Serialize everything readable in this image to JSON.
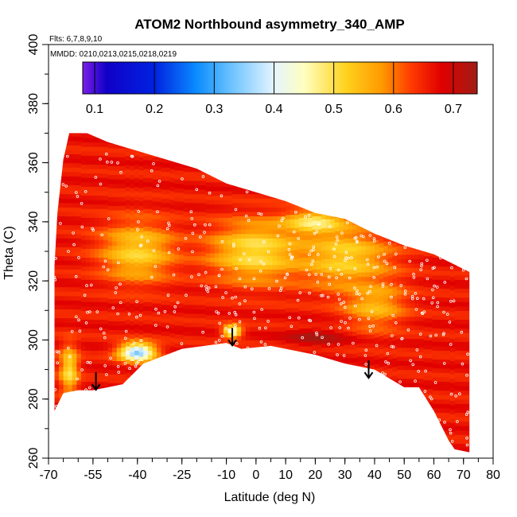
{
  "chart_data": {
    "type": "heatmap",
    "title": "ATOM2 Northbound asymmetry_340_AMP",
    "flights_note": "Flts: 6,7,8,9,10",
    "dates_note": "MMDD: 0210,0213,0215,0218,0219",
    "xlabel": "Latitude (deg N)",
    "ylabel": "Theta (C)",
    "xlim": [
      -70,
      80
    ],
    "ylim": [
      260,
      400
    ],
    "x_ticks": [
      -70,
      -55,
      -40,
      -25,
      -10,
      0,
      10,
      20,
      30,
      40,
      50,
      60,
      70,
      80
    ],
    "x_tick_labels": [
      "-70",
      "-55",
      "-40",
      "-25",
      "-10",
      "0",
      "10",
      "20",
      "30",
      "40",
      "50",
      "60",
      "70",
      "80"
    ],
    "y_ticks": [
      260,
      280,
      300,
      320,
      340,
      360,
      380,
      400
    ],
    "y_tick_labels": [
      "260",
      "280",
      "300",
      "320",
      "340",
      "360",
      "380",
      "400"
    ],
    "colorbar": {
      "range": [
        0.08,
        0.74
      ],
      "ticks": [
        0.1,
        0.2,
        0.3,
        0.4,
        0.5,
        0.6,
        0.7
      ],
      "tick_labels": [
        "0.1",
        "0.2",
        "0.3",
        "0.4",
        "0.5",
        "0.6",
        "0.7"
      ],
      "stops": [
        {
          "v": 0.08,
          "color": "#7a1fe8"
        },
        {
          "v": 0.12,
          "color": "#1000c8"
        },
        {
          "v": 0.2,
          "color": "#0022e0"
        },
        {
          "v": 0.27,
          "color": "#0a8cff"
        },
        {
          "v": 0.33,
          "color": "#6ec4ff"
        },
        {
          "v": 0.4,
          "color": "#e4f4ff"
        },
        {
          "v": 0.45,
          "color": "#ffffc0"
        },
        {
          "v": 0.52,
          "color": "#ffd21e"
        },
        {
          "v": 0.58,
          "color": "#ff9a00"
        },
        {
          "v": 0.63,
          "color": "#ff3a00"
        },
        {
          "v": 0.68,
          "color": "#e00000"
        },
        {
          "v": 0.74,
          "color": "#a01c14"
        }
      ]
    },
    "domain_boundary": {
      "upper": [
        [
          -68,
          325
        ],
        [
          -67,
          343
        ],
        [
          -66,
          352
        ],
        [
          -65,
          361
        ],
        [
          -63,
          370
        ],
        [
          -57,
          370
        ],
        [
          -50,
          367
        ],
        [
          -40,
          364
        ],
        [
          -30,
          361
        ],
        [
          -20,
          358
        ],
        [
          -10,
          353
        ],
        [
          0,
          350
        ],
        [
          10,
          347
        ],
        [
          20,
          343
        ],
        [
          30,
          341
        ],
        [
          40,
          336
        ],
        [
          50,
          332
        ],
        [
          60,
          329
        ],
        [
          70,
          324
        ],
        [
          72,
          323
        ]
      ],
      "lower": [
        [
          -68,
          276
        ],
        [
          -65,
          282
        ],
        [
          -60,
          283
        ],
        [
          -55,
          283
        ],
        [
          -45,
          285
        ],
        [
          -38,
          292
        ],
        [
          -25,
          297
        ],
        [
          -10,
          299
        ],
        [
          -5,
          297
        ],
        [
          5,
          298
        ],
        [
          20,
          295
        ],
        [
          30,
          292
        ],
        [
          40,
          290
        ],
        [
          50,
          284
        ],
        [
          55,
          284
        ],
        [
          60,
          276
        ],
        [
          65,
          266
        ],
        [
          67,
          263
        ],
        [
          72,
          262
        ]
      ]
    },
    "field_features": [
      {
        "lat": -40,
        "theta": 296,
        "value": 0.33,
        "spread_lat": 6,
        "spread_theta": 3
      },
      {
        "lat": -8,
        "theta": 303,
        "value": 0.4,
        "spread_lat": 3,
        "spread_theta": 2
      },
      {
        "lat": -63,
        "theta": 290,
        "value": 0.5,
        "spread_lat": 3,
        "spread_theta": 8
      },
      {
        "lat": -40,
        "theta": 330,
        "value": 0.52,
        "spread_lat": 12,
        "spread_theta": 10
      },
      {
        "lat": 0,
        "theta": 330,
        "value": 0.5,
        "spread_lat": 15,
        "spread_theta": 10
      },
      {
        "lat": 30,
        "theta": 328,
        "value": 0.52,
        "spread_lat": 15,
        "spread_theta": 10
      },
      {
        "lat": 20,
        "theta": 340,
        "value": 0.48,
        "spread_lat": 10,
        "spread_theta": 4
      },
      {
        "lat": 40,
        "theta": 312,
        "value": 0.55,
        "spread_lat": 10,
        "spread_theta": 8
      },
      {
        "lat": 20,
        "theta": 301,
        "value": 0.72,
        "spread_lat": 10,
        "spread_theta": 3
      }
    ],
    "arrows": [
      {
        "lat": -54,
        "theta": 288
      },
      {
        "lat": -8,
        "theta": 303
      },
      {
        "lat": 38,
        "theta": 292
      }
    ]
  }
}
